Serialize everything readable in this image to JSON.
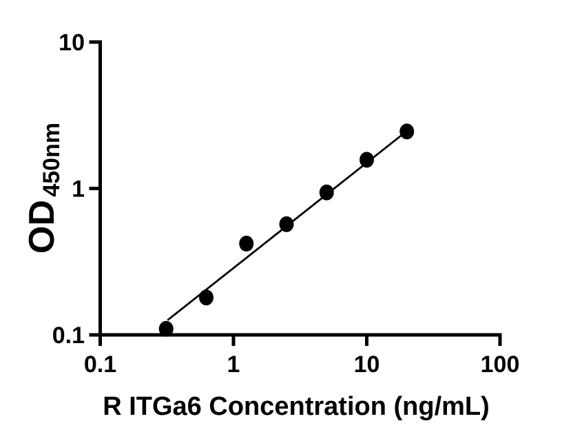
{
  "figure": {
    "background_color": "#ffffff",
    "foreground_color": "#000000"
  },
  "chart_data": {
    "type": "scatter",
    "title": "",
    "xlabel": "R ITGa6 Concentration (ng/mL)",
    "ylabel": "OD",
    "ylabel_subscript": "450nm",
    "x_scale": "log",
    "y_scale": "log",
    "xlim": [
      0.1,
      100
    ],
    "ylim": [
      0.1,
      10
    ],
    "x_ticks": [
      0.1,
      1,
      10,
      100
    ],
    "x_tick_labels": [
      "0.1",
      "1",
      "10",
      "100"
    ],
    "y_ticks": [
      0.1,
      1,
      10
    ],
    "y_tick_labels": [
      "0.1",
      "1",
      "10"
    ],
    "grid": false,
    "legend_position": "none",
    "series": [
      {
        "name": "standard-curve-points",
        "kind": "scatter",
        "marker": "filled-circle",
        "color": "#000000",
        "x": [
          0.3125,
          0.625,
          1.25,
          2.5,
          5,
          10,
          20
        ],
        "y": [
          0.11,
          0.18,
          0.42,
          0.57,
          0.94,
          1.57,
          2.45
        ]
      },
      {
        "name": "fit-line",
        "kind": "line",
        "color": "#000000",
        "x": [
          0.32,
          19.8
        ],
        "y": [
          0.126,
          2.45
        ]
      }
    ]
  }
}
